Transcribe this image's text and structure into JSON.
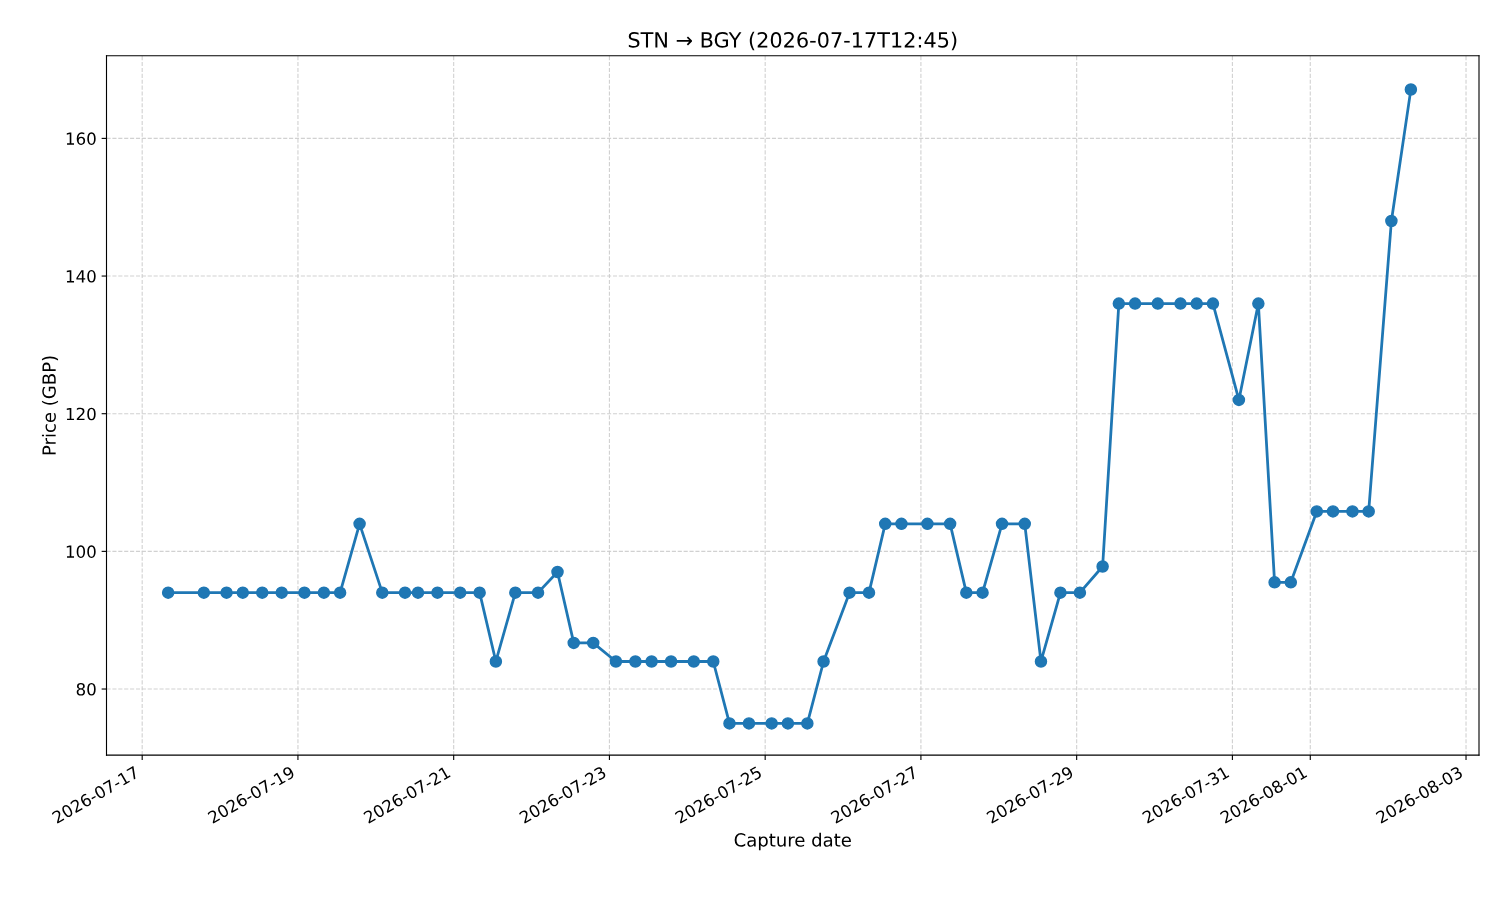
{
  "chart_data": {
    "type": "line",
    "title": "STN → BGY (2026-07-17T12:45)",
    "xlabel": "Capture date",
    "ylabel": "Price (GBP)",
    "x": [
      "2026-07-17T08:00",
      "2026-07-17T19:00",
      "2026-07-18T02:00",
      "2026-07-18T07:00",
      "2026-07-18T13:00",
      "2026-07-18T19:00",
      "2026-07-19T02:00",
      "2026-07-19T08:00",
      "2026-07-19T13:00",
      "2026-07-19T19:00",
      "2026-07-20T02:00",
      "2026-07-20T09:00",
      "2026-07-20T13:00",
      "2026-07-20T19:00",
      "2026-07-21T02:00",
      "2026-07-21T08:00",
      "2026-07-21T13:00",
      "2026-07-21T19:00",
      "2026-07-22T02:00",
      "2026-07-22T08:00",
      "2026-07-22T13:00",
      "2026-07-22T19:00",
      "2026-07-23T02:00",
      "2026-07-23T08:00",
      "2026-07-23T13:00",
      "2026-07-23T19:00",
      "2026-07-24T02:00",
      "2026-07-24T08:00",
      "2026-07-24T13:00",
      "2026-07-24T19:00",
      "2026-07-25T02:00",
      "2026-07-25T07:00",
      "2026-07-25T13:00",
      "2026-07-25T18:00",
      "2026-07-26T02:00",
      "2026-07-26T08:00",
      "2026-07-26T13:00",
      "2026-07-26T18:00",
      "2026-07-27T02:00",
      "2026-07-27T09:00",
      "2026-07-27T14:00",
      "2026-07-27T19:00",
      "2026-07-28T01:00",
      "2026-07-28T08:00",
      "2026-07-28T13:00",
      "2026-07-28T19:00",
      "2026-07-29T01:00",
      "2026-07-29T08:00",
      "2026-07-29T13:00",
      "2026-07-29T18:00",
      "2026-07-30T01:00",
      "2026-07-30T08:00",
      "2026-07-30T13:00",
      "2026-07-30T18:00",
      "2026-07-31T02:00",
      "2026-07-31T08:00",
      "2026-07-31T13:00",
      "2026-07-31T18:00",
      "2026-08-01T02:00",
      "2026-08-01T07:00",
      "2026-08-01T13:00",
      "2026-08-01T18:00",
      "2026-08-02T01:00",
      "2026-08-02T07:00"
    ],
    "series": [
      {
        "color": "#1f77b4",
        "values": [
          94,
          94,
          94,
          94,
          94,
          94,
          94,
          94,
          94,
          104,
          94,
          94,
          94,
          94,
          94,
          94,
          84,
          94,
          94,
          97,
          86.7,
          86.7,
          84,
          84,
          84,
          84,
          84,
          84,
          75,
          75,
          75,
          75,
          75,
          84,
          94,
          94,
          104,
          104,
          104,
          104,
          94,
          94,
          104,
          104,
          84,
          94,
          94,
          97.8,
          136,
          136,
          136,
          136,
          136,
          136,
          122,
          136,
          95.5,
          95.5,
          105.8,
          105.8,
          105.8,
          105.8,
          148,
          167.1
        ]
      }
    ],
    "xlim": [
      "2026-07-16T13:00",
      "2026-08-03T04:00"
    ],
    "xticks": [
      "2026-07-17",
      "2026-07-19",
      "2026-07-21",
      "2026-07-23",
      "2026-07-25",
      "2026-07-27",
      "2026-07-29",
      "2026-07-31",
      "2026-08-01",
      "2026-08-03"
    ],
    "ylim": [
      70.4,
      172
    ],
    "yticks": [
      80,
      100,
      120,
      140,
      160
    ],
    "grid": true,
    "marker": "circle",
    "line_style": "solid"
  }
}
